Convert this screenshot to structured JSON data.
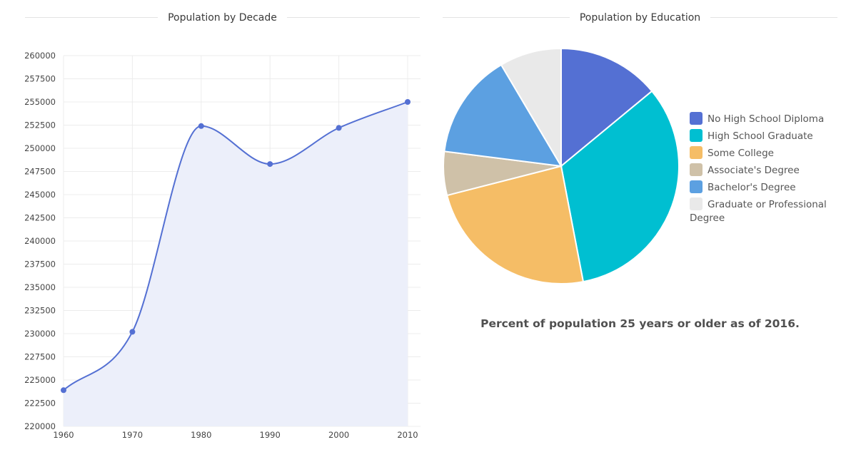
{
  "left_section": {
    "title": "Population by Decade"
  },
  "right_section": {
    "title": "Population by Education",
    "caption": "Percent of population 25 years or older as of 2016."
  },
  "colors": {
    "line": "#5470d3",
    "area": "#eceffa",
    "grid": "#ececec",
    "pie": [
      "#5470d3",
      "#00bfd1",
      "#f5bd66",
      "#cfc1a8",
      "#5ca0e1",
      "#e9e9e9"
    ]
  },
  "chart_data": [
    {
      "type": "area",
      "title": "Population by Decade",
      "x": [
        "1960",
        "1970",
        "1980",
        "1990",
        "2000",
        "2010"
      ],
      "values": [
        223900,
        230200,
        252400,
        248300,
        252200,
        255000
      ],
      "ylim": [
        220000,
        260000
      ],
      "yticks": [
        "220000",
        "222500",
        "225000",
        "227500",
        "230000",
        "232500",
        "235000",
        "237500",
        "240000",
        "242500",
        "245000",
        "247500",
        "250000",
        "252500",
        "255000",
        "257500",
        "260000"
      ],
      "grid": true,
      "smooth": true
    },
    {
      "type": "pie",
      "title": "Population by Education",
      "categories": [
        "No High School Diploma",
        "High School Graduate",
        "Some College",
        "Associate's Degree",
        "Bachelor's Degree",
        "Graduate or Professional Degree"
      ],
      "values": [
        14,
        33,
        24,
        6,
        14.5,
        8.5
      ],
      "legend": "right"
    }
  ]
}
